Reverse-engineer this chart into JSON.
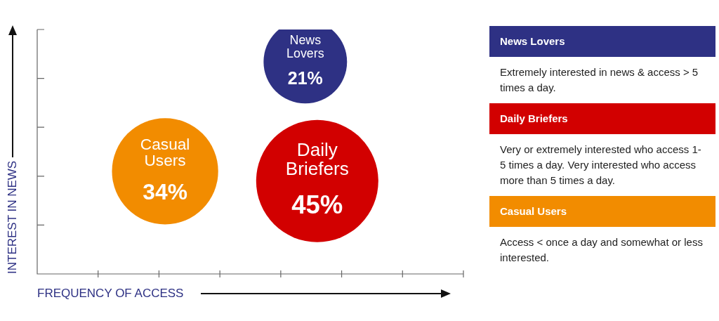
{
  "chart_data": [
    {
      "type": "other",
      "xlabel": "FREQUENCY OF ACCESS",
      "ylabel": "INTEREST IN NEWS",
      "categories": [
        "News Lovers",
        "Casual Users",
        "Daily Briefers"
      ],
      "values": [
        21,
        34,
        45
      ],
      "value_labels": [
        "21%",
        "34%",
        "45%"
      ],
      "colors": [
        "#2e3184",
        "#f28c00",
        "#d20000"
      ]
    },
    {
      "type": "other",
      "categories": [
        "News Lovers",
        "Daily Briefers",
        "Casual Users"
      ],
      "colors": [
        "#2e3184",
        "#d20000",
        "#f28c00"
      ],
      "annotations": [
        "Extremely interested in news & access > 5 times a day.",
        "Very or extremely interested who access 1-5 times a day. Very interested who access more than 5 times a day.",
        "Access < once a day and somewhat or less interested."
      ]
    }
  ]
}
